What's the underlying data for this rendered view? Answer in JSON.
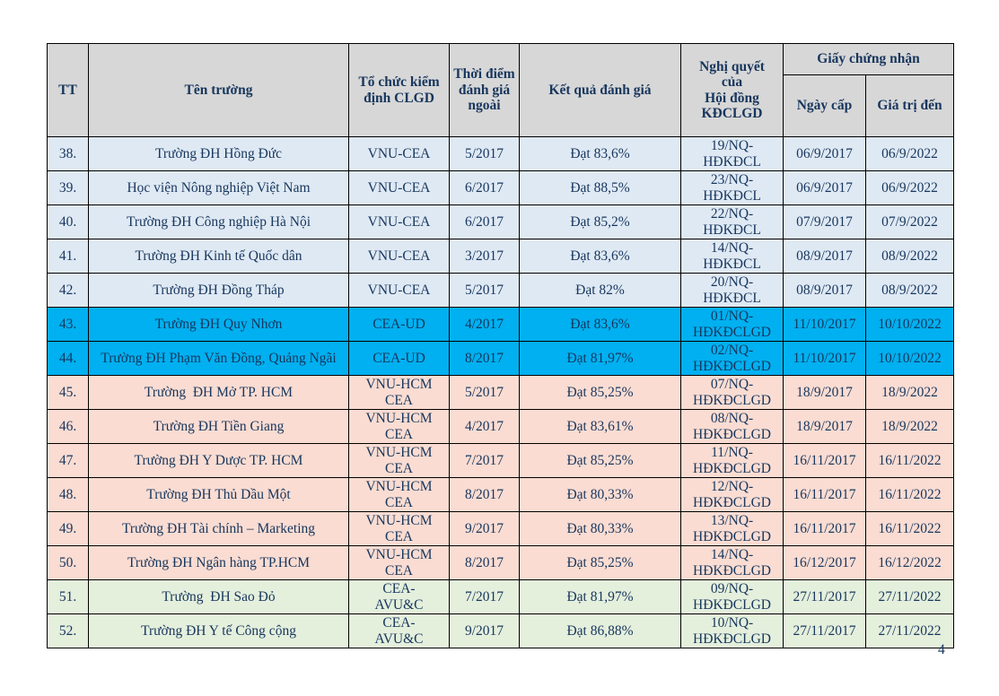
{
  "page": {
    "number": "4"
  },
  "table": {
    "headers": {
      "tt": "TT",
      "name": "Tên trường",
      "org": "Tổ chức kiểm định CLGD",
      "time": "Thời điểm đánh giá ngoài",
      "result": "Kết quả đánh giá",
      "resolution": "Nghị quyết\ncủa\nHội đồng\nKĐCLGD",
      "certificate": "Giấy chứng nhận",
      "issue_date": "Ngày cấp",
      "valid_until": "Giá trị đến"
    },
    "colors": {
      "header_bg": "#d7d7d7",
      "text": "#17365d",
      "border": "#000000",
      "blue": "#dfe9f4",
      "cyan": "#00b0f0",
      "pink": "#fadcd2",
      "green": "#e4efdc"
    },
    "rows": [
      {
        "tt": "38.",
        "name": "Trường ĐH Hồng Đức",
        "org": "VNU-CEA",
        "time": "5/2017",
        "result": "Đạt 83,6%",
        "resolution": "19/NQ-\nHĐKĐCL",
        "issue_date": "06/9/2017",
        "valid_until": "06/9/2022",
        "group": "blue"
      },
      {
        "tt": "39.",
        "name": "Học viện Nông nghiệp Việt Nam",
        "org": "VNU-CEA",
        "time": "6/2017",
        "result": "Đạt 88,5%",
        "resolution": "23/NQ-\nHĐKĐCL",
        "issue_date": "06/9/2017",
        "valid_until": "06/9/2022",
        "group": "blue"
      },
      {
        "tt": "40.",
        "name": "Trường ĐH Công nghiệp Hà Nội",
        "org": "VNU-CEA",
        "time": "6/2017",
        "result": "Đạt 85,2%",
        "resolution": "22/NQ-\nHĐKĐCL",
        "issue_date": "07/9/2017",
        "valid_until": "07/9/2022",
        "group": "blue"
      },
      {
        "tt": "41.",
        "name": "Trường ĐH Kinh tế Quốc dân",
        "org": "VNU-CEA",
        "time": "3/2017",
        "result": "Đạt 83,6%",
        "resolution": "14/NQ-\nHĐKĐCL",
        "issue_date": "08/9/2017",
        "valid_until": "08/9/2022",
        "group": "blue"
      },
      {
        "tt": "42.",
        "name": "Trường ĐH Đồng Tháp",
        "org": "VNU-CEA",
        "time": "5/2017",
        "result": "Đạt 82%",
        "resolution": "20/NQ-\nHĐKĐCL",
        "issue_date": "08/9/2017",
        "valid_until": "08/9/2022",
        "group": "blue"
      },
      {
        "tt": "43.",
        "name": "Trường ĐH Quy Nhơn",
        "org": "CEA-UD",
        "time": "4/2017",
        "result": "Đạt 83,6%",
        "resolution": "01/NQ-\nHĐKĐCLGD",
        "issue_date": "11/10/2017",
        "valid_until": "10/10/2022",
        "group": "cyan"
      },
      {
        "tt": "44.",
        "name": "Trường ĐH Phạm Văn Đồng, Quảng Ngãi",
        "org": "CEA-UD",
        "time": "8/2017",
        "result": "Đạt 81,97%",
        "resolution": "02/NQ-\nHĐKĐCLGD",
        "issue_date": "11/10/2017",
        "valid_until": "10/10/2022",
        "group": "cyan"
      },
      {
        "tt": "45.",
        "name": "Trường  ĐH Mở TP. HCM",
        "org": "VNU-HCM\nCEA",
        "time": "5/2017",
        "result": "Đạt 85,25%",
        "resolution": "07/NQ-\nHĐKĐCLGD",
        "issue_date": "18/9/2017",
        "valid_until": "18/9/2022",
        "group": "pink"
      },
      {
        "tt": "46.",
        "name": "Trường ĐH Tiền Giang",
        "org": "VNU-HCM\nCEA",
        "time": "4/2017",
        "result": "Đạt 83,61%",
        "resolution": "08/NQ-\nHĐKĐCLGD",
        "issue_date": "18/9/2017",
        "valid_until": "18/9/2022",
        "group": "pink"
      },
      {
        "tt": "47.",
        "name": "Trường ĐH Y Dược TP. HCM",
        "org": "VNU-HCM\nCEA",
        "time": "7/2017",
        "result": "Đạt 85,25%",
        "resolution": "11/NQ-\nHĐKĐCLGD",
        "issue_date": "16/11/2017",
        "valid_until": "16/11/2022",
        "group": "pink"
      },
      {
        "tt": "48.",
        "name": "Trường ĐH Thủ Dầu Một",
        "org": "VNU-HCM\nCEA",
        "time": "8/2017",
        "result": "Đạt 80,33%",
        "resolution": "12/NQ-\nHĐKĐCLGD",
        "issue_date": "16/11/2017",
        "valid_until": "16/11/2022",
        "group": "pink"
      },
      {
        "tt": "49.",
        "name": "Trường ĐH Tài chính – Marketing",
        "org": "VNU-HCM\nCEA",
        "time": "9/2017",
        "result": "Đạt 80,33%",
        "resolution": "13/NQ-\nHĐKĐCLGD",
        "issue_date": "16/11/2017",
        "valid_until": "16/11/2022",
        "group": "pink"
      },
      {
        "tt": "50.",
        "name": "Trường ĐH Ngân hàng TP.HCM",
        "org": "VNU-HCM\nCEA",
        "time": "8/2017",
        "result": "Đạt 85,25%",
        "resolution": "14/NQ-\nHĐKĐCLGD",
        "issue_date": "16/12/2017",
        "valid_until": "16/12/2022",
        "group": "pink"
      },
      {
        "tt": "51.",
        "name": "Trường  ĐH Sao Đỏ",
        "org": "CEA-\nAVU&C",
        "time": "7/2017",
        "result": "Đạt 81,97%",
        "resolution": "09/NQ-\nHĐKĐCLGD",
        "issue_date": "27/11/2017",
        "valid_until": "27/11/2022",
        "group": "green"
      },
      {
        "tt": "52.",
        "name": "Trường ĐH Y tế Công cộng",
        "org": "CEA-\nAVU&C",
        "time": "9/2017",
        "result": "Đạt 86,88%",
        "resolution": "10/NQ-\nHĐKĐCLGD",
        "issue_date": "27/11/2017",
        "valid_until": "27/11/2022",
        "group": "green"
      }
    ]
  }
}
